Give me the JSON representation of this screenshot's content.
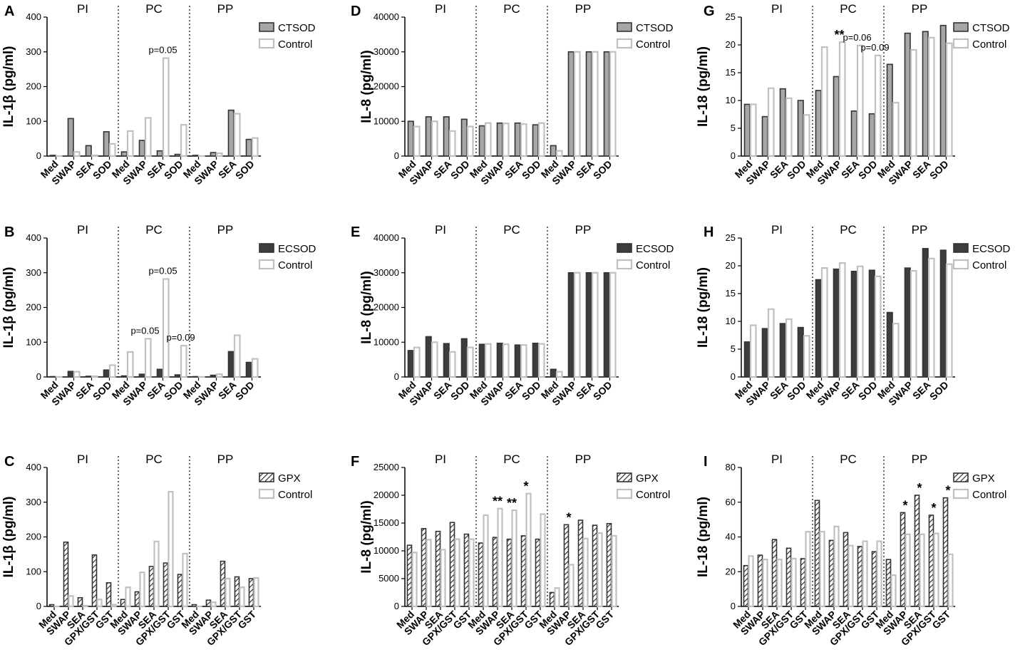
{
  "colors": {
    "ctsod_fill": "#a6a6a6",
    "ecsod_fill": "#3d3d3d",
    "gpx_fill": "#ffffff",
    "control_stroke": "#c0c0c0",
    "bar_stroke": "#333333"
  },
  "chart_data": [
    {
      "type": "bar",
      "letter": "A",
      "ylabel": "IL-1β (pg/ml)",
      "ylim": [
        0,
        400
      ],
      "yticks": [
        0,
        100,
        200,
        300,
        400
      ],
      "ytick_labels": [
        "0",
        "100",
        "200",
        "300",
        "400"
      ],
      "groups": [
        "PI",
        "PC",
        "PP"
      ],
      "categories": [
        "Med",
        "SWAP",
        "SEA",
        "SOD",
        "Med",
        "SWAP",
        "SEA",
        "SOD",
        "Med",
        "SWAP",
        "SEA",
        "SOD"
      ],
      "series": [
        {
          "name": "CTSOD",
          "style": "ctsod",
          "values": [
            2,
            108,
            30,
            70,
            12,
            45,
            15,
            5,
            2,
            10,
            132,
            48
          ]
        },
        {
          "name": "Control",
          "style": "control",
          "values": [
            0,
            12,
            2,
            35,
            72,
            110,
            282,
            90,
            0,
            8,
            122,
            52
          ]
        }
      ],
      "annotations": [
        {
          "text": "p=0.05",
          "cat": 6
        }
      ]
    },
    {
      "type": "bar",
      "letter": "B",
      "ylabel": "IL-1β (pg/ml)",
      "ylim": [
        0,
        400
      ],
      "yticks": [
        0,
        100,
        200,
        300,
        400
      ],
      "ytick_labels": [
        "0",
        "100",
        "200",
        "300",
        "400"
      ],
      "groups": [
        "PI",
        "PC",
        "PP"
      ],
      "categories": [
        "Med",
        "SWAP",
        "SEA",
        "SOD",
        "Med",
        "SWAP",
        "SEA",
        "SOD",
        "Med",
        "SWAP",
        "SEA",
        "SOD"
      ],
      "series": [
        {
          "name": "ECSOD",
          "style": "ecsod",
          "values": [
            1,
            16,
            2,
            20,
            3,
            8,
            22,
            6,
            1,
            5,
            73,
            42
          ]
        },
        {
          "name": "Control",
          "style": "control",
          "values": [
            0,
            15,
            2,
            34,
            72,
            110,
            282,
            90,
            0,
            8,
            120,
            52
          ]
        }
      ],
      "annotations": [
        {
          "text": "p=0.05",
          "cat": 5
        },
        {
          "text": "p=0.05",
          "cat": 6
        },
        {
          "text": "p=0.09",
          "cat": 7
        }
      ]
    },
    {
      "type": "bar",
      "letter": "C",
      "ylabel": "IL-1β (pg/ml)",
      "ylim": [
        0,
        400
      ],
      "yticks": [
        0,
        100,
        200,
        300,
        400
      ],
      "ytick_labels": [
        "0",
        "100",
        "200",
        "300",
        "400"
      ],
      "groups": [
        "PI",
        "PC",
        "PP"
      ],
      "categories": [
        "Med",
        "SWAP",
        "SEA",
        "GPX/GST",
        "GST",
        "Med",
        "SWAP",
        "SEA",
        "GPX/GST",
        "GST",
        "Med",
        "SWAP",
        "SEA",
        "GPX/GST",
        "GST"
      ],
      "series": [
        {
          "name": "GPX",
          "style": "gpx",
          "values": [
            5,
            185,
            25,
            148,
            68,
            20,
            42,
            115,
            125,
            92,
            5,
            18,
            130,
            85,
            80
          ]
        },
        {
          "name": "Control",
          "style": "control",
          "values": [
            0,
            30,
            2,
            20,
            5,
            55,
            98,
            187,
            330,
            152,
            0,
            12,
            80,
            55,
            82
          ]
        }
      ],
      "annotations": []
    },
    {
      "type": "bar",
      "letter": "D",
      "ylabel": "IL-8 (pg/ml)",
      "ylim": [
        0,
        40000
      ],
      "yticks": [
        0,
        10000,
        20000,
        30000,
        40000
      ],
      "ytick_labels": [
        "0",
        "10000",
        "20000",
        "30000",
        "40000"
      ],
      "groups": [
        "PI",
        "PC",
        "PP"
      ],
      "categories": [
        "Med",
        "SWAP",
        "SEA",
        "SOD",
        "Med",
        "SWAP",
        "SEA",
        "SOD",
        "Med",
        "SWAP",
        "SEA",
        "SOD"
      ],
      "series": [
        {
          "name": "CTSOD",
          "style": "ctsod",
          "values": [
            10000,
            11300,
            11300,
            10600,
            8700,
            9500,
            9500,
            9000,
            3000,
            30000,
            30000,
            30000
          ]
        },
        {
          "name": "Control",
          "style": "control",
          "values": [
            8500,
            10000,
            7200,
            8500,
            9500,
            9400,
            9200,
            9500,
            1500,
            30000,
            30000,
            30000
          ]
        }
      ],
      "annotations": []
    },
    {
      "type": "bar",
      "letter": "E",
      "ylabel": "IL-8 (pg/ml)",
      "ylim": [
        0,
        40000
      ],
      "yticks": [
        0,
        10000,
        20000,
        30000,
        40000
      ],
      "ytick_labels": [
        "0",
        "10000",
        "20000",
        "30000",
        "40000"
      ],
      "groups": [
        "PI",
        "PC",
        "PP"
      ],
      "categories": [
        "Med",
        "SWAP",
        "SEA",
        "SOD",
        "Med",
        "SWAP",
        "SEA",
        "SOD",
        "Med",
        "SWAP",
        "SEA",
        "SOD"
      ],
      "series": [
        {
          "name": "ECSOD",
          "style": "ecsod",
          "values": [
            7600,
            11600,
            9600,
            11000,
            9400,
            9700,
            9200,
            9700,
            2200,
            30000,
            30000,
            30000
          ]
        },
        {
          "name": "Control",
          "style": "control",
          "values": [
            8500,
            10000,
            7200,
            8500,
            9500,
            9400,
            9200,
            9500,
            1500,
            30000,
            30000,
            30000
          ]
        }
      ],
      "annotations": []
    },
    {
      "type": "bar",
      "letter": "F",
      "ylabel": "IL-8 (pg/ml)",
      "ylim": [
        0,
        25000
      ],
      "yticks": [
        0,
        5000,
        10000,
        15000,
        20000,
        25000
      ],
      "ytick_labels": [
        "0",
        "5000",
        "10000",
        "15000",
        "20000",
        "25000"
      ],
      "groups": [
        "PI",
        "PC",
        "PP"
      ],
      "categories": [
        "Med",
        "SWAP",
        "SEA",
        "GPX/GST",
        "GST",
        "Med",
        "SWAP",
        "SEA",
        "GPX/GST",
        "GST",
        "Med",
        "SWAP",
        "SEA",
        "GPX/GST",
        "GST"
      ],
      "series": [
        {
          "name": "GPX",
          "style": "gpx",
          "values": [
            11000,
            14000,
            13500,
            15100,
            13000,
            11400,
            12400,
            12100,
            12700,
            12100,
            2500,
            14700,
            15500,
            14600,
            14900
          ]
        },
        {
          "name": "Control",
          "style": "control",
          "values": [
            9700,
            12000,
            10200,
            12100,
            12100,
            16400,
            17600,
            17300,
            20300,
            16600,
            3300,
            7500,
            12200,
            13200,
            12700
          ]
        }
      ],
      "annotations": [
        {
          "text": "**",
          "cat": 6
        },
        {
          "text": "**",
          "cat": 7
        },
        {
          "text": "*",
          "cat": 8
        },
        {
          "text": "*",
          "cat": 11
        }
      ]
    },
    {
      "type": "bar",
      "letter": "G",
      "ylabel": "IL-18 (pg/ml)",
      "ylim": [
        0,
        25
      ],
      "yticks": [
        0,
        5,
        10,
        15,
        20,
        25
      ],
      "ytick_labels": [
        "0",
        "5",
        "10",
        "15",
        "20",
        "25"
      ],
      "groups": [
        "PI",
        "PC",
        "PP"
      ],
      "categories": [
        "Med",
        "SWAP",
        "SEA",
        "SOD",
        "Med",
        "SWAP",
        "SEA",
        "SOD",
        "Med",
        "SWAP",
        "SEA",
        "SOD"
      ],
      "series": [
        {
          "name": "CTSOD",
          "style": "ctsod",
          "values": [
            9.3,
            7.1,
            12.1,
            10.0,
            11.8,
            14.3,
            8.1,
            7.6,
            16.5,
            22.1,
            22.4,
            23.5
          ]
        },
        {
          "name": "Control",
          "style": "control",
          "values": [
            9.3,
            12.2,
            10.4,
            7.4,
            19.6,
            20.5,
            19.9,
            18.1,
            9.6,
            19.1,
            21.3,
            20.3
          ]
        }
      ],
      "annotations": [
        {
          "text": "**",
          "cat": 5
        },
        {
          "text": "p=0.06",
          "cat": 6
        },
        {
          "text": "p=0.09",
          "cat": 7
        }
      ]
    },
    {
      "type": "bar",
      "letter": "H",
      "ylabel": "IL-18 (pg/ml)",
      "ylim": [
        0,
        25
      ],
      "yticks": [
        0,
        5,
        10,
        15,
        20,
        25
      ],
      "ytick_labels": [
        "0",
        "5",
        "10",
        "15",
        "20",
        "25"
      ],
      "groups": [
        "PI",
        "PC",
        "PP"
      ],
      "categories": [
        "Med",
        "SWAP",
        "SEA",
        "SOD",
        "Med",
        "SWAP",
        "SEA",
        "SOD",
        "Med",
        "SWAP",
        "SEA",
        "SOD"
      ],
      "series": [
        {
          "name": "ECSOD",
          "style": "ecsod",
          "values": [
            6.3,
            8.7,
            9.6,
            8.9,
            17.5,
            19.4,
            19.0,
            19.2,
            11.6,
            19.6,
            23.1,
            22.8
          ]
        },
        {
          "name": "Control",
          "style": "control",
          "values": [
            9.3,
            12.2,
            10.4,
            7.4,
            19.6,
            20.5,
            19.9,
            18.1,
            9.6,
            19.1,
            21.3,
            20.3
          ]
        }
      ],
      "annotations": []
    },
    {
      "type": "bar",
      "letter": "I",
      "ylabel": "IL-18 (pg/ml)",
      "ylim": [
        0,
        80
      ],
      "yticks": [
        0,
        20,
        40,
        60,
        80
      ],
      "ytick_labels": [
        "0",
        "20",
        "40",
        "60",
        "80"
      ],
      "groups": [
        "PI",
        "PC",
        "PP"
      ],
      "categories": [
        "Med",
        "SWAP",
        "SEA",
        "GPX/GST",
        "GST",
        "Med",
        "SWAP",
        "SEA",
        "GPX/GST",
        "GST",
        "Med",
        "SWAP",
        "SEA",
        "GPX/GST",
        "GST"
      ],
      "series": [
        {
          "name": "GPX",
          "style": "gpx",
          "values": [
            23.5,
            29.5,
            38.5,
            33.5,
            27.5,
            61,
            38,
            42.5,
            34.5,
            31.5,
            27,
            54,
            64,
            52.5,
            62.5
          ]
        },
        {
          "name": "Control",
          "style": "control",
          "values": [
            29,
            27,
            27,
            27.5,
            43,
            43,
            46,
            35,
            37.5,
            37.5,
            18,
            41.5,
            41.5,
            42,
            30
          ]
        }
      ],
      "annotations": [
        {
          "text": "*",
          "cat": 11
        },
        {
          "text": "*",
          "cat": 12
        },
        {
          "text": "*",
          "cat": 13
        },
        {
          "text": "*",
          "cat": 14
        }
      ]
    }
  ]
}
